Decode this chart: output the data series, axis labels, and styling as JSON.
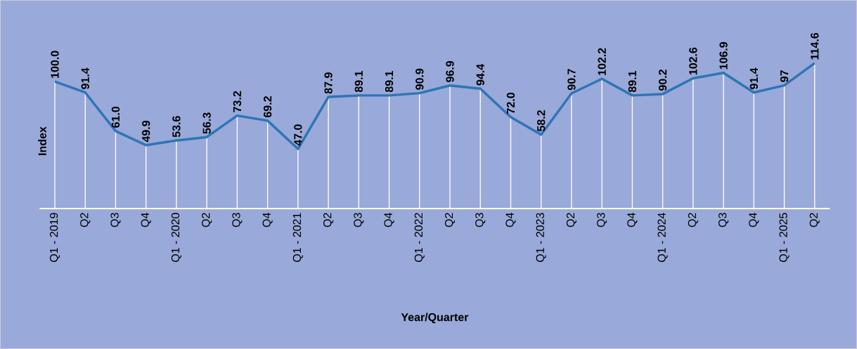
{
  "chart_data": {
    "type": "line",
    "xlabel": "Year/Quarter",
    "ylabel": "Index",
    "categories": [
      "Q1 - 2019",
      "Q2",
      "Q3",
      "Q4",
      "Q1 - 2020",
      "Q2",
      "Q3",
      "Q4",
      "Q1 - 2021",
      "Q2",
      "Q3",
      "Q4",
      "Q1 - 2022",
      "Q2",
      "Q3",
      "Q4",
      "Q1 - 2023",
      "Q2",
      "Q3",
      "Q4",
      "Q1 - 2024",
      "Q2",
      "Q3",
      "Q4",
      "Q1 - 2025",
      "Q2"
    ],
    "values": [
      100.0,
      91.4,
      61.0,
      49.9,
      53.6,
      56.3,
      73.2,
      69.2,
      47.0,
      87.9,
      89.1,
      89.1,
      90.9,
      96.9,
      94.4,
      72.0,
      58.2,
      90.7,
      102.2,
      89.1,
      90.2,
      102.6,
      106.9,
      91.4,
      97,
      114.6
    ],
    "value_labels": [
      "100.0",
      "91.4",
      "61.0",
      "49.9",
      "53.6",
      "56.3",
      "73.2",
      "69.2",
      "47.0",
      "87.9",
      "89.1",
      "89.1",
      "90.9",
      "96.9",
      "94.4",
      "72.0",
      "58.2",
      "90.7",
      "102.2",
      "89.1",
      "90.2",
      "102.6",
      "106.9",
      "91.4",
      "97",
      "114.6"
    ],
    "color": "#2e75b6",
    "grid": "x"
  }
}
